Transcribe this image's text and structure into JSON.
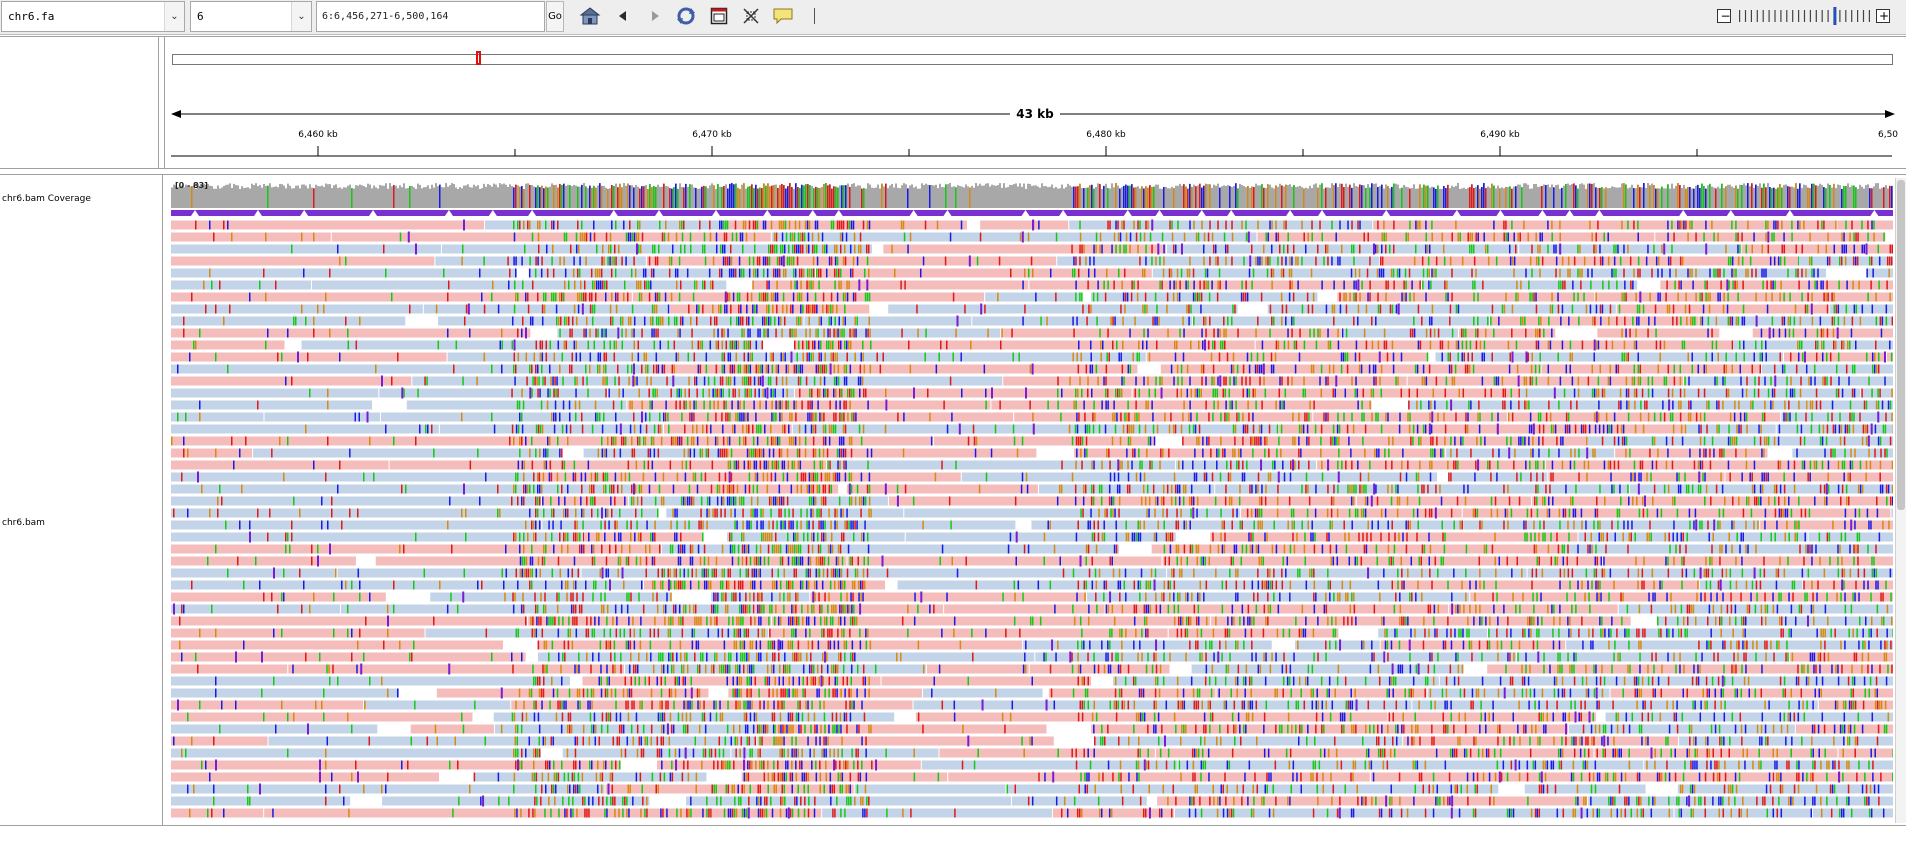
{
  "toolbar": {
    "genome": {
      "value": "chr6.fa"
    },
    "chromosome": {
      "value": "6"
    },
    "locus": {
      "value": "6:6,456,271-6,500,164"
    },
    "go_label": "Go",
    "icons": [
      "home-icon",
      "back-arrow-icon",
      "forward-arrow-icon",
      "refresh-icon",
      "resize-to-window-icon",
      "region-of-interest-icon",
      "popup-info-icon"
    ]
  },
  "zoom": {
    "minus_label": "−",
    "plus_label": "+",
    "levels": 23,
    "current_level": 16
  },
  "ruler": {
    "span_label": "43 kb",
    "ticks": [
      "6,460 kb",
      "6,470 kb",
      "6,480 kb",
      "6,490 kb",
      "6,50"
    ]
  },
  "tracks": {
    "coverage": {
      "name": "chr6.bam Coverage",
      "range": "[0 - 83]"
    },
    "alignment": {
      "name": "chr6.bam"
    }
  },
  "colors": {
    "forward_read": "#f5bcbc",
    "reverse_read": "#c3d4e8",
    "coverage_fill": "#a8a8a8",
    "junction_band": "#7a30d0",
    "base_A": "#16c816",
    "base_C": "#1a1ae6",
    "base_G": "#d68a12",
    "base_T": "#e01818",
    "insertion": "#7a1bd6",
    "region_marker": "#e01010"
  }
}
